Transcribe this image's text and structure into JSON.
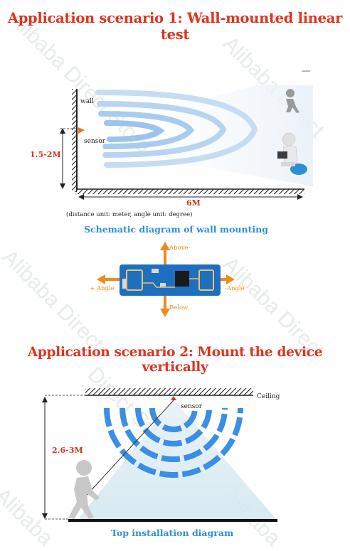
{
  "scenario1": {
    "title": "Application scenario 1: Wall-mounted linear test",
    "wall_label": "wall",
    "sensor_label": "sensor",
    "height_label": "1.5-2M",
    "distance_label": "6M",
    "unit_note": "(distance unit: meter, angle unit: degree)",
    "caption": "Schematic diagram of wall mounting"
  },
  "module": {
    "above": "Above",
    "below": "Below",
    "plus_angle": "+ Angle",
    "minus_angle": "-Angle"
  },
  "scenario2": {
    "title": "Application scenario 2: Mount the device vertically",
    "ceiling_label": "Ceiling",
    "sensor_label": "sensor",
    "height_label": "2.6-3M",
    "caption": "Top installation diagram"
  },
  "watermark": [
    "Alibaba Direct Store",
    "Alibaba Direct",
    "Alibaba Direct",
    "Alibaba Direct",
    "Alibaba",
    "Alibaba",
    "Direct Store"
  ],
  "colors": {
    "title_red": "#e0321e",
    "wave_blue": "#6fa9e8",
    "wave_light": "#cfe3f5",
    "arrow_orange": "#f08a1c",
    "caption_blue": "#2d8fd8",
    "pcb_blue": "#1f6fc0"
  }
}
